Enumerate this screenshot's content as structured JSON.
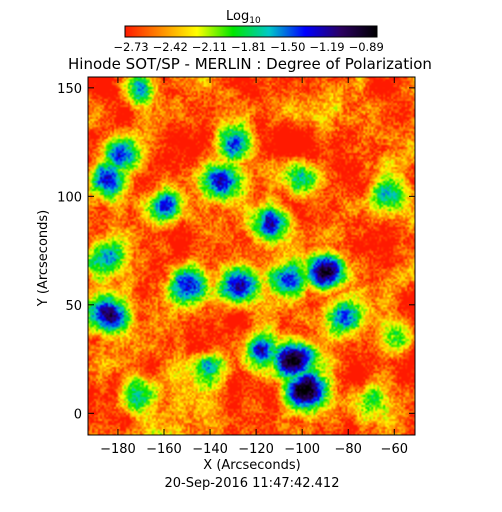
{
  "chart_data": {
    "type": "heatmap",
    "title": "Hinode SOT/SP - MERLIN : Degree of Polarization",
    "xlabel": "X (Arcseconds)",
    "ylabel": "Y (Arcseconds)",
    "timestamp": "20-Sep-2016 11:47:42.412",
    "xlim": [
      -193,
      -51
    ],
    "ylim": [
      -10,
      155
    ],
    "x_ticks": [
      -180,
      -160,
      -140,
      -120,
      -100,
      -80,
      -60
    ],
    "y_ticks": [
      0,
      50,
      100,
      150
    ],
    "x_tick_labels": [
      "−180",
      "−160",
      "−140",
      "−120",
      "−100",
      "−80",
      "−60"
    ],
    "y_tick_labels": [
      "0",
      "50",
      "100",
      "150"
    ],
    "colorbar": {
      "label": "Log",
      "label_subscript": "10",
      "range": [
        -2.73,
        -0.89
      ],
      "tick_labels": [
        "−2.73",
        "−2.42",
        "−2.11",
        "−1.81",
        "−1.50",
        "−1.19",
        "−0.89"
      ],
      "colormap": [
        "#ff1a00",
        "#ff8c00",
        "#ffff00",
        "#00e600",
        "#00c8c8",
        "#0000ff",
        "#2b0060",
        "#000000"
      ]
    },
    "field_description_regions": [
      {
        "x": -104,
        "y": 25,
        "level": -1.0
      },
      {
        "x": -98,
        "y": 10,
        "level": -1.1
      },
      {
        "x": -128,
        "y": 58,
        "level": -1.3
      },
      {
        "x": -150,
        "y": 60,
        "level": -1.4
      },
      {
        "x": -90,
        "y": 65,
        "level": -1.3
      },
      {
        "x": -185,
        "y": 45,
        "level": -1.3
      },
      {
        "x": -186,
        "y": 108,
        "level": -1.4
      },
      {
        "x": -178,
        "y": 120,
        "level": -1.5
      },
      {
        "x": -160,
        "y": 96,
        "level": -1.6
      },
      {
        "x": -134,
        "y": 107,
        "level": -1.5
      },
      {
        "x": -114,
        "y": 88,
        "level": -1.4
      },
      {
        "x": -105,
        "y": 62,
        "level": -1.5
      },
      {
        "x": -82,
        "y": 45,
        "level": -1.5
      },
      {
        "x": -118,
        "y": 28,
        "level": -1.6
      },
      {
        "x": -140,
        "y": 20,
        "level": -1.7
      },
      {
        "x": -172,
        "y": 8,
        "level": -1.7
      },
      {
        "x": -186,
        "y": 72,
        "level": -1.8
      },
      {
        "x": -130,
        "y": 125,
        "level": -1.7
      },
      {
        "x": -172,
        "y": 150,
        "level": -1.7
      },
      {
        "x": -100,
        "y": 108,
        "level": -1.9
      },
      {
        "x": -62,
        "y": 100,
        "level": -1.8
      },
      {
        "x": -60,
        "y": 35,
        "level": -1.9
      },
      {
        "x": -72,
        "y": 5,
        "level": -1.9
      }
    ]
  }
}
